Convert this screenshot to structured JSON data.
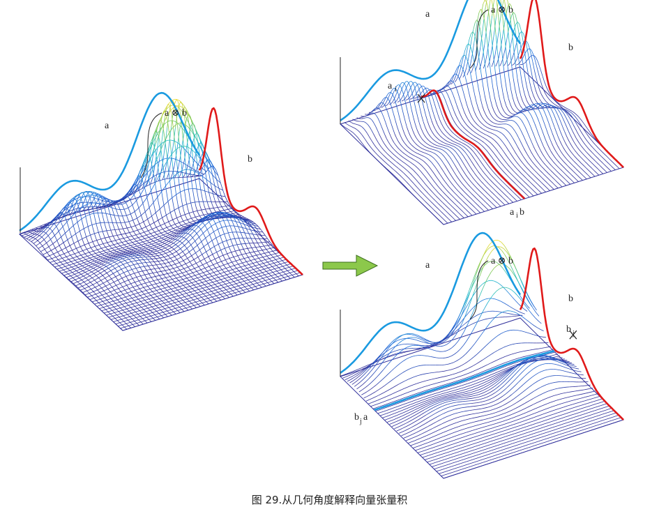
{
  "labels": {
    "a": "a",
    "b": "b",
    "tensor": "a ⊗ b",
    "ai": "a",
    "ai_sub": "i",
    "bj": "b",
    "bj_sub": "j",
    "aib_a": "a",
    "aib_sub": "i",
    "aib_b": "b",
    "bja_b": "b",
    "bja_sub": "j",
    "bja_a": "a"
  },
  "arrow_icon": "right-arrow-icon",
  "caption": "图 29.从几何角度解释向量张量积",
  "colors": {
    "a_curve": "#1a9ae0",
    "b_curve": "#e01a1a",
    "mesh": "#2e2e9a",
    "arrow_fill": "#8cc84b",
    "arrow_stroke": "#3b6e1e"
  }
}
